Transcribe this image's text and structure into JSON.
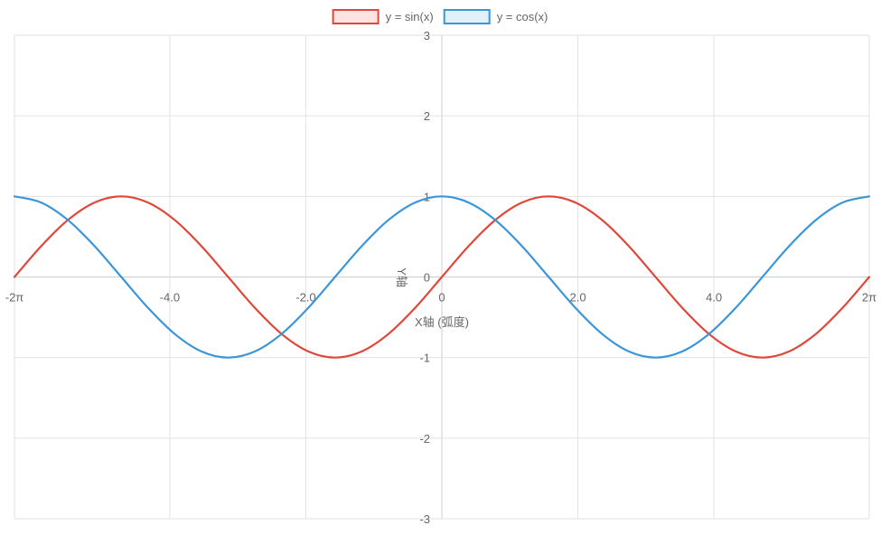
{
  "chart_data": {
    "type": "line",
    "title": "",
    "xlabel": "X轴 (弧度)",
    "ylabel": "Y轴",
    "xlim": [
      -6.283185307,
      6.283185307
    ],
    "ylim": [
      -3,
      3
    ],
    "x_ticks": [
      {
        "value": -6.283185307,
        "label": "-2π"
      },
      {
        "value": -4.0,
        "label": "-4.0"
      },
      {
        "value": -2.0,
        "label": "-2.0"
      },
      {
        "value": 0,
        "label": "0"
      },
      {
        "value": 2.0,
        "label": "2.0"
      },
      {
        "value": 4.0,
        "label": "4.0"
      },
      {
        "value": 6.283185307,
        "label": "2π"
      }
    ],
    "y_ticks": [
      {
        "value": 3,
        "label": "3"
      },
      {
        "value": 2,
        "label": "2"
      },
      {
        "value": 1,
        "label": "1"
      },
      {
        "value": 0,
        "label": "0"
      },
      {
        "value": -1,
        "label": "-1"
      },
      {
        "value": -2,
        "label": "-2"
      },
      {
        "value": -3,
        "label": "-3"
      }
    ],
    "grid": true,
    "legend_position": "top-center",
    "x": [
      -6.2832,
      -5.8905,
      -5.4978,
      -5.1051,
      -4.7124,
      -4.3197,
      -3.927,
      -3.5343,
      -3.1416,
      -2.7489,
      -2.3562,
      -1.9635,
      -1.5708,
      -1.1781,
      -0.7854,
      -0.3927,
      0,
      0.3927,
      0.7854,
      1.1781,
      1.5708,
      1.9635,
      2.3562,
      2.7489,
      3.1416,
      3.5343,
      3.927,
      4.3197,
      4.7124,
      5.1051,
      5.4978,
      5.8905,
      6.2832
    ],
    "series": [
      {
        "name": "y = sin(x)",
        "color": "#e0473a",
        "fill": "#fde4e2",
        "values": [
          0,
          0.383,
          0.707,
          0.924,
          1,
          0.924,
          0.707,
          0.383,
          0,
          -0.383,
          -0.707,
          -0.924,
          -1,
          -0.924,
          -0.707,
          -0.383,
          0,
          0.383,
          0.707,
          0.924,
          1,
          0.924,
          0.707,
          0.383,
          0,
          -0.383,
          -0.707,
          -0.924,
          -1,
          -0.924,
          -0.707,
          -0.383,
          0
        ]
      },
      {
        "name": "y = cos(x)",
        "color": "#3a96d8",
        "fill": "#e2f0fa",
        "values": [
          1,
          0.924,
          0.707,
          0.383,
          0,
          -0.383,
          -0.707,
          -0.924,
          -1,
          -0.924,
          -0.707,
          -0.383,
          0,
          0.383,
          0.707,
          0.924,
          1,
          0.924,
          0.707,
          0.383,
          0,
          -0.383,
          -0.707,
          -0.924,
          -1,
          -0.924,
          -0.707,
          -0.383,
          0,
          0.383,
          0.707,
          0.924,
          1
        ]
      }
    ],
    "colors": {
      "grid": "#e2e2e2",
      "axis": "#cfcfcf",
      "tick_text": "#666666"
    }
  }
}
